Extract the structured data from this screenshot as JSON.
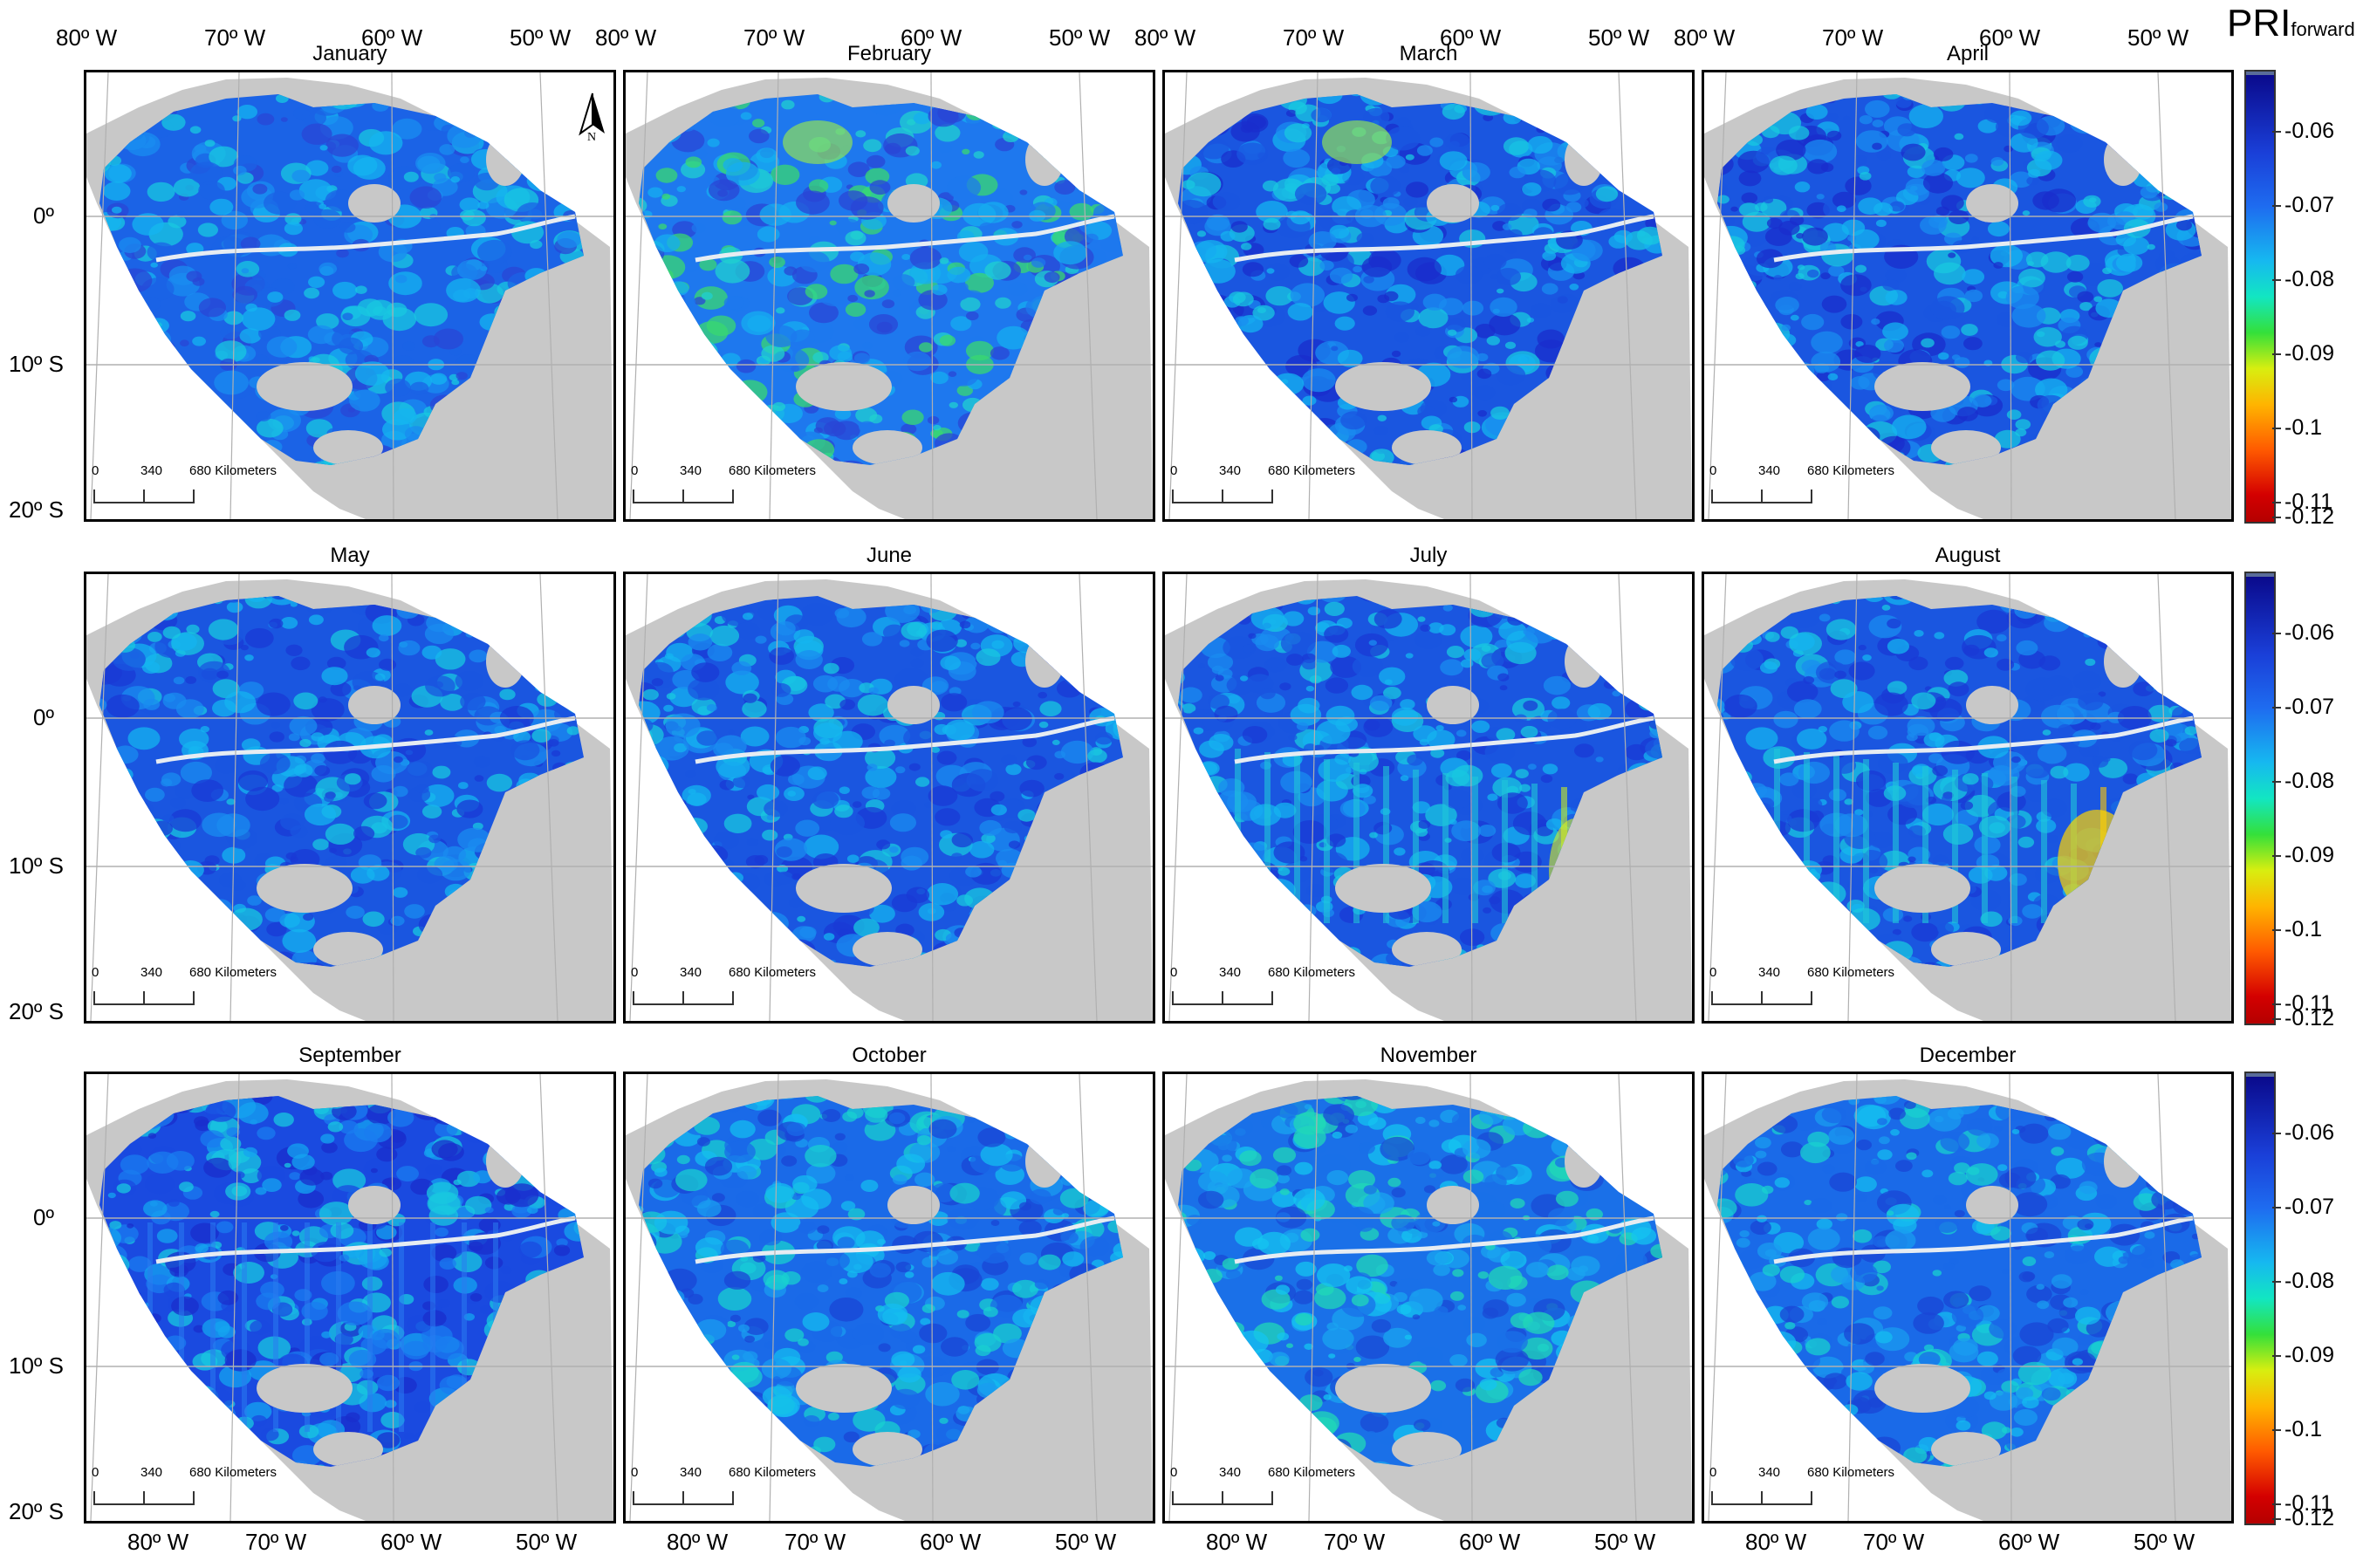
{
  "months": [
    "January",
    "February",
    "March",
    "April",
    "May",
    "June",
    "July",
    "August",
    "September",
    "October",
    "November",
    "December"
  ],
  "lon_labels_top": [
    "80º W",
    "70º W",
    "60º W",
    "50º W"
  ],
  "lon_labels_bottom": [
    "80º W",
    "70º W",
    "60º W",
    "50º W"
  ],
  "lat_labels": [
    "0º",
    "10º S",
    "20º S"
  ],
  "scalebar": {
    "zero": "0",
    "mid": "340",
    "end": "680 Kilometers"
  },
  "north_arrow": {
    "label": "N",
    "icon": "north-arrow-icon"
  },
  "colorbar": {
    "title_main": "PRI",
    "title_sub": "forward",
    "ticks": [
      "-0.06",
      "-0.07",
      "-0.08",
      "-0.09",
      "-0.1",
      "-0.11",
      "-0.12"
    ],
    "colormap": "jet-reversed",
    "range": [
      -0.12,
      -0.052
    ]
  },
  "colors": {
    "land_nodata": "#c8c8c8",
    "ocean": "#ffffff",
    "frame": "#000000"
  },
  "seasonal_pattern": {
    "July": "striped green-yellow anomalies in south-east",
    "August": "yellow-orange anomalies in south-east"
  }
}
